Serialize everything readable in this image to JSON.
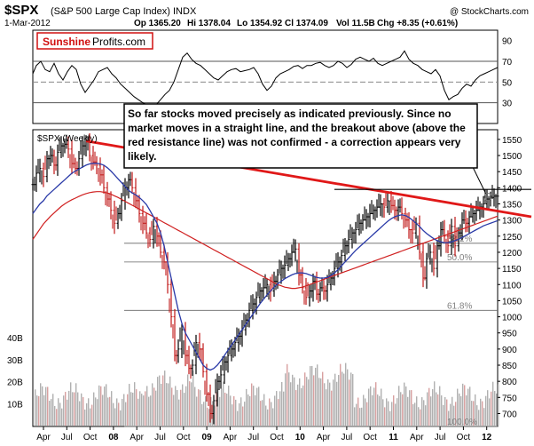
{
  "chart_data": {
    "type": "line",
    "symbol": "$SPX",
    "title": "(S&P 500 Large Cap Index) INDX",
    "date": "1-Mar-2012",
    "quote": {
      "open": "Op 1365.20",
      "high": "Hi 1378.04",
      "low": "Lo 1354.92",
      "close": "Cl 1374.09",
      "volume": "Vol 11.5B",
      "change": "Chg +8.35 (+0.61%)"
    },
    "copyright": "@ StockCharts.com",
    "brand": {
      "name_red": "Sunshine",
      "name_black": "Profits.com",
      "color": "#d01010"
    },
    "price_panel_label": "$SPX (Weekly)",
    "annotation": "So far stocks moved precisely as indicated previously. Since no market moves in a straight line, and the breakout above (above the red resistance line) was not confirmed - a correction appears very likely.",
    "rsi": {
      "yticks": [
        90,
        70,
        50,
        30
      ],
      "ylim": [
        10,
        100
      ],
      "levels": [
        70,
        50,
        30
      ],
      "x": [
        0,
        4,
        9,
        14,
        19,
        24,
        29,
        34,
        39,
        44,
        49,
        54,
        59,
        64,
        69,
        74,
        79,
        84,
        89,
        94,
        99,
        104,
        109,
        114,
        119,
        124,
        129,
        134,
        139,
        144,
        149,
        154,
        159,
        164,
        169,
        174,
        179,
        184,
        189,
        194,
        199,
        204,
        209,
        214,
        219,
        224,
        229,
        234,
        239,
        244,
        249,
        254,
        259,
        264,
        269,
        274,
        279,
        284,
        289,
        294,
        299,
        304,
        309,
        314,
        319,
        324,
        329,
        334,
        339,
        344,
        349,
        354,
        359,
        364,
        369,
        374,
        379,
        384,
        389,
        394,
        399,
        404,
        409,
        414,
        419,
        424,
        429,
        434,
        439,
        444,
        449,
        454,
        459,
        464,
        469,
        474,
        479,
        484,
        489,
        494,
        499,
        504,
        509,
        514,
        519,
        524
      ],
      "values": [
        58,
        66,
        70,
        62,
        60,
        68,
        58,
        52,
        60,
        66,
        62,
        48,
        40,
        46,
        52,
        60,
        62,
        64,
        58,
        54,
        48,
        44,
        40,
        36,
        33,
        30,
        28,
        26,
        28,
        33,
        38,
        42,
        50,
        62,
        74,
        78,
        72,
        68,
        66,
        62,
        58,
        54,
        52,
        56,
        60,
        62,
        63,
        60,
        61,
        62,
        64,
        58,
        48,
        42,
        46,
        54,
        58,
        60,
        62,
        65,
        66,
        63,
        66,
        66,
        68,
        69,
        66,
        64,
        66,
        70,
        68,
        64,
        67,
        72,
        74,
        72,
        70,
        73,
        68,
        66,
        68,
        70,
        72,
        74,
        80,
        72,
        68,
        66,
        62,
        60,
        58,
        62,
        56,
        42,
        33,
        36,
        38,
        44,
        48,
        46,
        52,
        56,
        58,
        60,
        62,
        64
      ]
    },
    "price": {
      "yticks": [
        1550,
        1500,
        1450,
        1400,
        1350,
        1300,
        1250,
        1200,
        1150,
        1100,
        1050,
        1000,
        950,
        900,
        850,
        800,
        750,
        700
      ],
      "ylim": [
        660,
        1580
      ],
      "x": [
        0,
        4,
        8,
        12,
        16,
        20,
        24,
        28,
        32,
        36,
        40,
        44,
        48,
        52,
        56,
        60,
        64,
        68,
        72,
        76,
        80,
        84,
        88,
        92,
        96,
        100,
        104,
        108,
        112,
        116,
        120,
        124,
        128,
        132,
        136,
        140,
        144,
        148,
        152,
        156,
        160,
        164,
        168,
        172,
        176,
        180,
        184,
        188,
        192,
        196,
        200,
        204,
        208,
        212,
        216,
        220,
        224,
        228,
        232,
        236,
        240,
        244,
        248,
        252,
        256,
        260,
        264,
        268,
        272,
        276,
        280,
        284,
        288,
        292,
        296,
        300,
        304,
        308,
        312,
        316,
        320,
        324,
        328,
        332,
        336,
        340,
        344,
        348,
        352,
        356,
        360,
        364,
        368,
        372,
        376,
        380,
        384,
        388,
        392,
        396,
        400,
        404,
        408,
        412,
        416,
        420,
        424,
        428,
        432,
        436,
        440,
        444,
        448,
        452,
        456,
        460,
        464,
        468,
        472,
        476,
        480,
        484,
        488,
        492,
        496,
        500,
        504,
        508,
        512,
        516,
        520,
        524
      ],
      "close": [
        1410,
        1445,
        1460,
        1435,
        1490,
        1500,
        1470,
        1510,
        1530,
        1535,
        1520,
        1475,
        1460,
        1490,
        1530,
        1545,
        1500,
        1480,
        1470,
        1440,
        1400,
        1365,
        1330,
        1290,
        1320,
        1360,
        1400,
        1425,
        1400,
        1360,
        1320,
        1290,
        1260,
        1240,
        1280,
        1250,
        1200,
        1170,
        1100,
        1000,
        880,
        900,
        960,
        880,
        840,
        850,
        920,
        900,
        830,
        760,
        700,
        740,
        800,
        820,
        860,
        880,
        900,
        920,
        940,
        960,
        990,
        1020,
        1040,
        1060,
        1080,
        1090,
        1100,
        1080,
        1110,
        1130,
        1150,
        1160,
        1180,
        1200,
        1210,
        1130,
        1090,
        1060,
        1080,
        1110,
        1070,
        1090,
        1080,
        1100,
        1120,
        1150,
        1170,
        1190,
        1220,
        1240,
        1260,
        1270,
        1290,
        1300,
        1310,
        1320,
        1330,
        1340,
        1350,
        1340,
        1360,
        1345,
        1330,
        1340,
        1320,
        1300,
        1270,
        1260,
        1290,
        1200,
        1120,
        1180,
        1200,
        1150,
        1220,
        1270,
        1250,
        1220,
        1280,
        1220,
        1260,
        1300,
        1290,
        1310,
        1320,
        1330,
        1340,
        1350,
        1365,
        1370,
        1374,
        1374
      ],
      "ma50": [
        1320,
        1335,
        1350,
        1360,
        1375,
        1385,
        1395,
        1405,
        1415,
        1425,
        1435,
        1445,
        1452,
        1458,
        1464,
        1470,
        1474,
        1476,
        1476,
        1474,
        1470,
        1462,
        1452,
        1440,
        1428,
        1416,
        1404,
        1392,
        1384,
        1378,
        1370,
        1360,
        1348,
        1330,
        1310,
        1290,
        1260,
        1220,
        1170,
        1120,
        1070,
        1020,
        980,
        950,
        930,
        910,
        890,
        870,
        850,
        840,
        835,
        840,
        850,
        864,
        880,
        896,
        912,
        928,
        944,
        960,
        976,
        992,
        1008,
        1024,
        1040,
        1054,
        1068,
        1080,
        1092,
        1102,
        1110,
        1118,
        1124,
        1130,
        1134,
        1136,
        1136,
        1134,
        1130,
        1126,
        1122,
        1120,
        1120,
        1122,
        1128,
        1136,
        1146,
        1158,
        1170,
        1182,
        1194,
        1206,
        1216,
        1226,
        1236,
        1246,
        1256,
        1266,
        1276,
        1286,
        1296,
        1304,
        1310,
        1314,
        1316,
        1314,
        1308,
        1300,
        1290,
        1280,
        1268,
        1258,
        1250,
        1242,
        1236,
        1232,
        1230,
        1230,
        1232,
        1236,
        1240,
        1246,
        1252,
        1258,
        1264,
        1270,
        1276,
        1282,
        1286,
        1290,
        1294,
        1298
      ],
      "ma200": [
        1240,
        1256,
        1272,
        1288,
        1300,
        1312,
        1322,
        1332,
        1342,
        1350,
        1357,
        1363,
        1368,
        1373,
        1378,
        1382,
        1385,
        1387,
        1388,
        1388,
        1386,
        1384,
        1380,
        1375,
        1370,
        1364,
        1358,
        1352,
        1346,
        1340,
        1334,
        1328,
        1322,
        1316,
        1310,
        1304,
        1298,
        1292,
        1286,
        1280,
        1274,
        1268,
        1262,
        1256,
        1250,
        1244,
        1238,
        1232,
        1226,
        1220,
        1214,
        1208,
        1202,
        1196,
        1190,
        1184,
        1178,
        1172,
        1166,
        1160,
        1154,
        1148,
        1142,
        1136,
        1130,
        1124,
        1118,
        1112,
        1106,
        1100,
        1096,
        1092,
        1090,
        1088,
        1088,
        1090,
        1092,
        1096,
        1100,
        1104,
        1108,
        1112,
        1116,
        1120,
        1124,
        1128,
        1132,
        1136,
        1140,
        1144,
        1148,
        1152,
        1156,
        1160,
        1164,
        1168,
        1172,
        1176,
        1180,
        1184,
        1188,
        1192,
        1196,
        1200,
        1204,
        1208,
        1212,
        1216,
        1220,
        1224,
        1228,
        1232,
        1236,
        1240,
        1244,
        1248,
        1252,
        1256,
        1260,
        1264,
        1268,
        1272,
        1276,
        1280,
        1284,
        1288,
        1292,
        1296,
        1300,
        1304,
        1308,
        1312
      ],
      "resistance_line": {
        "x": [
          60,
          562
        ],
        "y": [
          1545,
          1310
        ]
      },
      "support_line": {
        "x": [
          60,
          562
        ],
        "y": [
          1395,
          1395
        ]
      },
      "fib_levels": [
        {
          "label": "38.2%",
          "value": 1228
        },
        {
          "label": "50.0%",
          "value": 1170
        },
        {
          "label": "61.8%",
          "value": 1020
        },
        {
          "label": "100.0%",
          "value": 660
        }
      ]
    },
    "volume": {
      "yticks": [
        "40B",
        "30B",
        "20B",
        "10B"
      ],
      "ylim": [
        0,
        40
      ]
    },
    "x_tick_labels": [
      "Apr",
      "Jul",
      "Oct",
      "08",
      "Apr",
      "Jul",
      "Oct",
      "09",
      "Apr",
      "Jul",
      "Oct",
      "10",
      "Apr",
      "Jul",
      "Oct",
      "11",
      "Apr",
      "Jul",
      "Oct",
      "12"
    ],
    "colors": {
      "price_bar": "#000000",
      "ma50": "#2a3aa8",
      "ma200": "#d02020",
      "resistance": "#e01818",
      "volume": "#b0b0b0",
      "volume_down": "#d8a0a0"
    }
  }
}
